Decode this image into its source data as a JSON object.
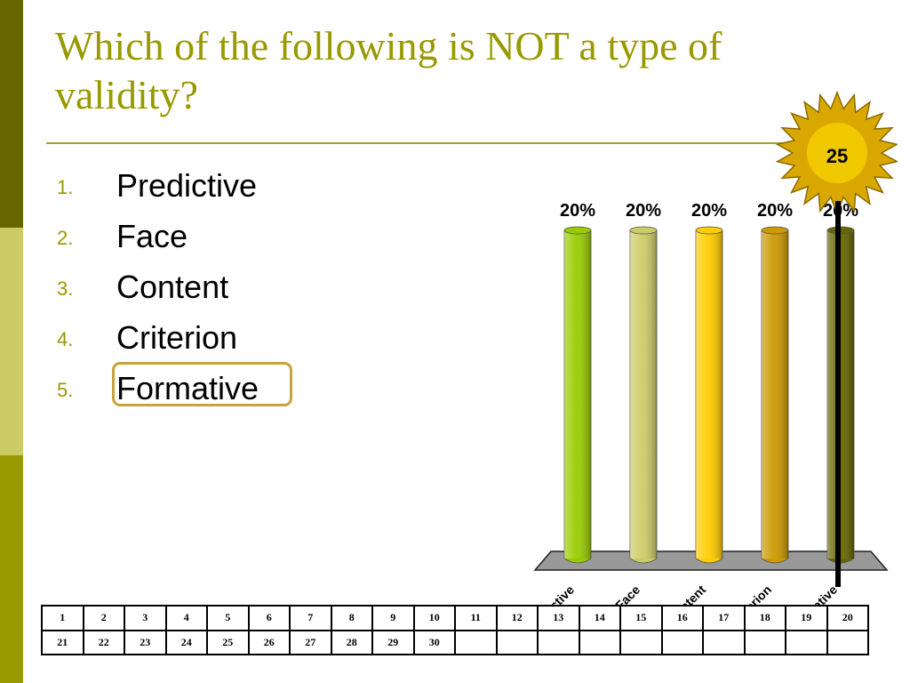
{
  "slide": {
    "title": "Which of the following is NOT a type of validity?",
    "accent_color": "#999900",
    "band_colors": [
      "#666600",
      "#cccc66",
      "#999900"
    ]
  },
  "options": [
    {
      "number": "1.",
      "label": "Predictive"
    },
    {
      "number": "2.",
      "label": "Face"
    },
    {
      "number": "3.",
      "label": "Content"
    },
    {
      "number": "4.",
      "label": "Criterion"
    },
    {
      "number": "5.",
      "label": "Formative",
      "highlighted": true
    }
  ],
  "countdown": {
    "value": "25",
    "fill_color": "#d9a800",
    "inner_color": "#f0c800"
  },
  "chart_data": {
    "type": "bar",
    "categories": [
      "Predictive",
      "Face",
      "Content",
      "Criterion",
      "Formative"
    ],
    "values": [
      20,
      20,
      20,
      20,
      20
    ],
    "value_labels": [
      "20%",
      "20%",
      "20%",
      "20%",
      "20%"
    ],
    "colors": [
      "#99cc00",
      "#cccc66",
      "#ffcc00",
      "#cc9900",
      "#666600"
    ],
    "ylim": [
      0,
      20
    ],
    "grid": false,
    "style": "3d-cylinder"
  },
  "response_grid": {
    "rows": [
      [
        "1",
        "2",
        "3",
        "4",
        "5",
        "6",
        "7",
        "8",
        "9",
        "10",
        "11",
        "12",
        "13",
        "14",
        "15",
        "16",
        "17",
        "18",
        "19",
        "20"
      ],
      [
        "21",
        "22",
        "23",
        "24",
        "25",
        "26",
        "27",
        "28",
        "29",
        "30",
        "",
        "",
        "",
        "",
        "",
        "",
        "",
        "",
        "",
        ""
      ]
    ]
  }
}
